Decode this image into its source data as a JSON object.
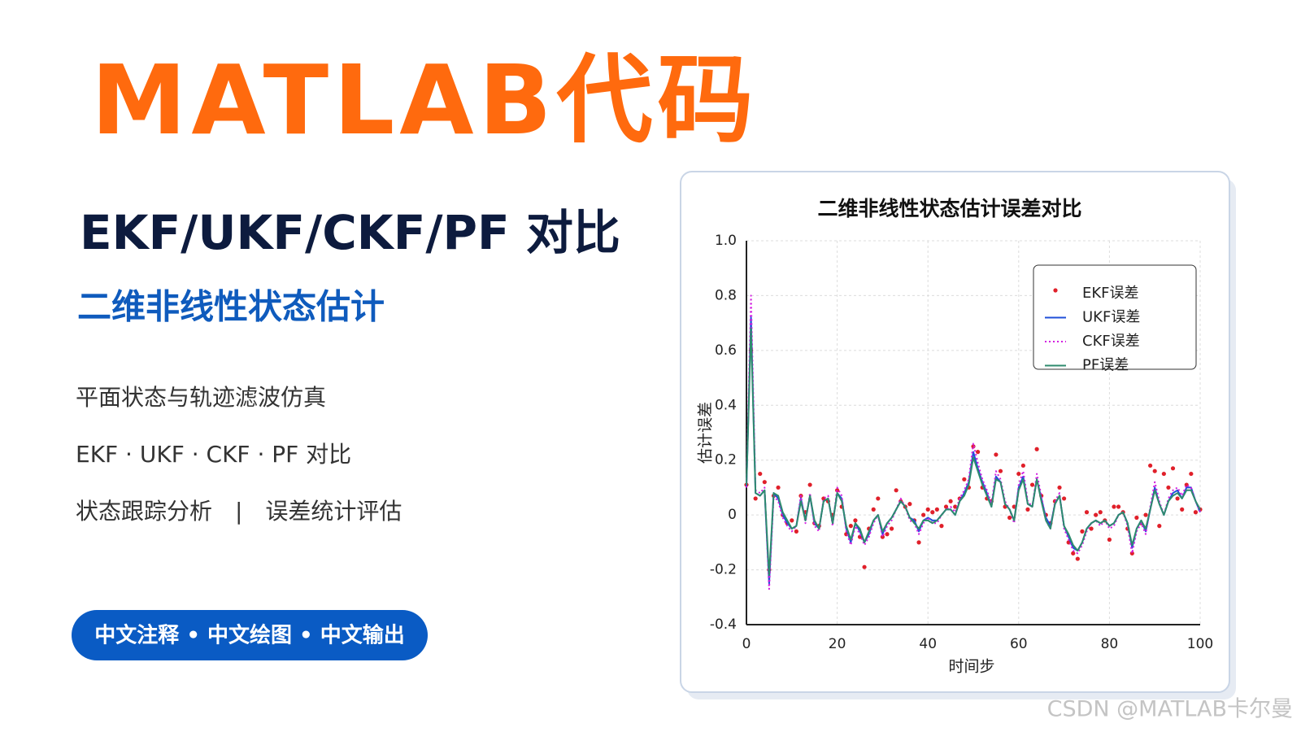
{
  "header": {
    "title": "MATLAB代码",
    "subtitle": "EKF/UKF/CKF/PF 对比",
    "tagline": "二维非线性状态估计"
  },
  "features": [
    "平面状态与轨迹滤波仿真",
    "EKF · UKF · CKF · PF 对比",
    "状态跟踪分析　|　误差统计评估"
  ],
  "badge": "中文注释 • 中文绘图 • 中文输出",
  "watermark": "CSDN @MATLAB卡尔曼",
  "chart_data": {
    "type": "line",
    "title": "二维非线性状态估计误差对比",
    "x_label": "时间步",
    "y_label": "估计误差",
    "xlim": [
      0,
      100
    ],
    "xticks": [
      0,
      20,
      40,
      60,
      80,
      100
    ],
    "ylim": [
      -0.4,
      1.0
    ],
    "yticks": [
      {
        "value": 1,
        "label": "1.0"
      },
      0.8,
      0.6,
      0.4,
      0.2,
      0,
      -0.2,
      -0.4
    ],
    "grid": true,
    "legend": "upper right",
    "x": [
      0,
      1,
      2,
      3,
      4,
      5,
      6,
      7,
      8,
      9,
      10,
      11,
      12,
      13,
      14,
      15,
      16,
      17,
      18,
      19,
      20,
      21,
      22,
      23,
      24,
      25,
      26,
      27,
      28,
      29,
      30,
      31,
      32,
      33,
      34,
      35,
      36,
      37,
      38,
      39,
      40,
      41,
      42,
      43,
      44,
      45,
      46,
      47,
      48,
      49,
      50,
      51,
      52,
      53,
      54,
      55,
      56,
      57,
      58,
      59,
      60,
      61,
      62,
      63,
      64,
      65,
      66,
      67,
      68,
      69,
      70,
      71,
      72,
      73,
      74,
      75,
      76,
      77,
      78,
      79,
      80,
      81,
      82,
      83,
      84,
      85,
      86,
      87,
      88,
      89,
      90,
      91,
      92,
      93,
      94,
      95,
      96,
      97,
      98,
      99,
      100
    ],
    "series": [
      {
        "name": "EKF误差",
        "color": "#e0202a",
        "style": "dots",
        "values": [
          0.11,
          0.6,
          0.06,
          0.15,
          0.12,
          -0.2,
          0.07,
          0.1,
          0.0,
          -0.03,
          -0.02,
          -0.06,
          0.07,
          0.01,
          0.11,
          -0.03,
          -0.04,
          0.06,
          0.05,
          0.0,
          0.09,
          0.03,
          -0.07,
          -0.04,
          -0.02,
          -0.08,
          -0.19,
          -0.05,
          0.02,
          0.06,
          -0.08,
          -0.07,
          -0.05,
          0.09,
          0.05,
          0.03,
          0.04,
          -0.02,
          -0.1,
          0.0,
          0.02,
          0.01,
          0.02,
          -0.04,
          0.03,
          0.05,
          0.03,
          0.06,
          0.13,
          0.1,
          0.25,
          0.23,
          0.1,
          0.06,
          0.05,
          0.22,
          0.16,
          0.03,
          -0.01,
          0.03,
          0.15,
          0.18,
          0.02,
          0.11,
          0.24,
          0.07,
          0.0,
          -0.03,
          0.05,
          0.1,
          0.06,
          -0.1,
          -0.14,
          -0.16,
          -0.06,
          0.01,
          -0.05,
          0.0,
          0.01,
          -0.02,
          -0.09,
          0.03,
          0.03,
          0.01,
          -0.05,
          -0.14,
          -0.01,
          -0.03,
          0.0,
          0.18,
          0.16,
          -0.04,
          0.15,
          0.1,
          0.17,
          0.06,
          0.02,
          0.11,
          0.15,
          0.01,
          0.02
        ]
      },
      {
        "name": "UKF误差",
        "color": "#1f4fd8",
        "style": "solid",
        "values": [
          0.1,
          0.72,
          0.08,
          0.07,
          0.09,
          -0.25,
          0.08,
          0.06,
          0.0,
          -0.03,
          -0.05,
          -0.04,
          0.06,
          -0.02,
          0.07,
          -0.03,
          -0.05,
          0.05,
          0.06,
          -0.03,
          0.08,
          0.06,
          -0.05,
          -0.1,
          -0.03,
          -0.06,
          -0.1,
          -0.07,
          -0.02,
          0.0,
          -0.07,
          -0.03,
          -0.01,
          0.02,
          0.05,
          0.03,
          -0.01,
          -0.02,
          -0.06,
          -0.02,
          -0.01,
          -0.02,
          -0.02,
          0.0,
          0.02,
          0.02,
          0.0,
          0.05,
          0.08,
          0.12,
          0.23,
          0.17,
          0.12,
          0.08,
          0.03,
          0.14,
          0.12,
          0.04,
          0.02,
          -0.02,
          0.1,
          0.14,
          0.04,
          0.03,
          0.13,
          0.06,
          -0.01,
          -0.04,
          0.04,
          0.07,
          -0.04,
          -0.08,
          -0.12,
          -0.13,
          -0.1,
          -0.05,
          -0.03,
          -0.02,
          -0.03,
          -0.02,
          -0.04,
          -0.03,
          0.0,
          0.01,
          -0.03,
          -0.12,
          -0.05,
          -0.02,
          -0.06,
          0.02,
          0.1,
          0.04,
          0.0,
          0.05,
          0.08,
          0.09,
          0.06,
          0.1,
          0.1,
          0.05,
          0.01
        ]
      },
      {
        "name": "CKF误差",
        "color": "#d21ee0",
        "style": "dotted",
        "values": [
          0.1,
          0.8,
          0.09,
          0.08,
          0.1,
          -0.27,
          0.07,
          0.05,
          -0.01,
          -0.04,
          -0.06,
          -0.04,
          0.07,
          -0.03,
          0.08,
          -0.04,
          -0.06,
          0.06,
          0.07,
          -0.04,
          0.1,
          0.07,
          -0.06,
          -0.11,
          -0.04,
          -0.07,
          -0.11,
          -0.08,
          -0.03,
          0.0,
          -0.08,
          -0.04,
          -0.02,
          0.02,
          0.06,
          0.03,
          -0.02,
          -0.03,
          -0.07,
          -0.03,
          -0.01,
          -0.03,
          -0.03,
          0.0,
          0.02,
          0.03,
          0.01,
          0.06,
          0.09,
          0.13,
          0.26,
          0.19,
          0.13,
          0.09,
          0.04,
          0.16,
          0.13,
          0.05,
          0.02,
          -0.03,
          0.11,
          0.16,
          0.05,
          0.03,
          0.15,
          0.07,
          -0.02,
          -0.05,
          0.05,
          0.08,
          -0.05,
          -0.09,
          -0.13,
          -0.14,
          -0.11,
          -0.06,
          -0.03,
          -0.02,
          -0.04,
          -0.02,
          -0.05,
          -0.04,
          0.0,
          0.01,
          -0.04,
          -0.14,
          -0.06,
          -0.03,
          -0.07,
          0.03,
          0.12,
          0.05,
          0.0,
          0.06,
          0.09,
          0.1,
          0.07,
          0.11,
          0.1,
          0.05,
          0.01
        ]
      },
      {
        "name": "PF误差",
        "color": "#2e8b6e",
        "style": "solid",
        "values": [
          0.11,
          0.68,
          0.08,
          0.07,
          0.09,
          -0.22,
          0.08,
          0.07,
          0.01,
          -0.02,
          -0.05,
          -0.04,
          0.05,
          -0.02,
          0.07,
          -0.02,
          -0.05,
          0.05,
          0.06,
          -0.03,
          0.08,
          0.05,
          -0.04,
          -0.09,
          -0.03,
          -0.05,
          -0.1,
          -0.06,
          -0.02,
          0.0,
          -0.06,
          -0.03,
          -0.01,
          0.02,
          0.05,
          0.03,
          -0.01,
          -0.03,
          -0.05,
          -0.02,
          -0.02,
          -0.03,
          -0.02,
          0.0,
          0.02,
          0.02,
          0.0,
          0.05,
          0.07,
          0.11,
          0.21,
          0.16,
          0.11,
          0.07,
          0.03,
          0.13,
          0.12,
          0.04,
          0.02,
          -0.02,
          0.09,
          0.13,
          0.04,
          0.03,
          0.13,
          0.05,
          -0.02,
          -0.05,
          0.04,
          0.07,
          -0.04,
          -0.07,
          -0.11,
          -0.13,
          -0.1,
          -0.05,
          -0.03,
          -0.02,
          -0.03,
          -0.02,
          -0.04,
          -0.03,
          0.0,
          0.01,
          -0.03,
          -0.11,
          -0.05,
          -0.02,
          -0.05,
          0.02,
          0.09,
          0.04,
          0.0,
          0.05,
          0.07,
          0.08,
          0.06,
          0.09,
          0.09,
          0.05,
          0.02
        ]
      }
    ]
  }
}
